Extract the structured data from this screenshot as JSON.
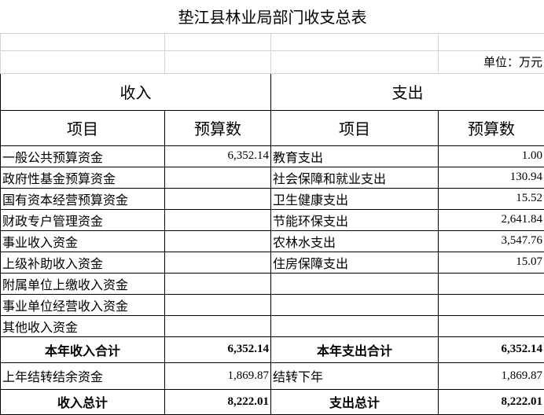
{
  "title": "垫江县林业局部门收支总表",
  "unit": "单位：万元",
  "table": {
    "group_headers": [
      "收入",
      "支出"
    ],
    "column_headers": [
      "项目",
      "预算数",
      "项目",
      "预算数"
    ],
    "rows": [
      [
        "一般公共预算资金",
        "6,352.14",
        "教育支出",
        "1.00"
      ],
      [
        "政府性基金预算资金",
        null,
        "社会保障和就业支出",
        "130.94"
      ],
      [
        "国有资本经营预算资金",
        null,
        "卫生健康支出",
        "15.52"
      ],
      [
        "财政专户管理资金",
        null,
        "节能环保支出",
        "2,641.84"
      ],
      [
        "事业收入资金",
        null,
        "农林水支出",
        "3,547.76"
      ],
      [
        "上级补助收入资金",
        null,
        "住房保障支出",
        "15.07"
      ],
      [
        "附属单位上缴收入资金",
        null,
        null,
        null
      ],
      [
        "事业单位经营收入资金",
        null,
        null,
        null
      ],
      [
        "其他收入资金",
        null,
        null,
        null
      ],
      [
        "本年收入合计",
        "6,352.14",
        "本年支出合计",
        "6,352.14"
      ],
      [
        "上年结转结余资金",
        "1,869.87",
        "结转下年",
        "1,869.87"
      ],
      [
        "收入总计",
        "8,222.01",
        "支出总计",
        "8,222.01"
      ]
    ]
  }
}
